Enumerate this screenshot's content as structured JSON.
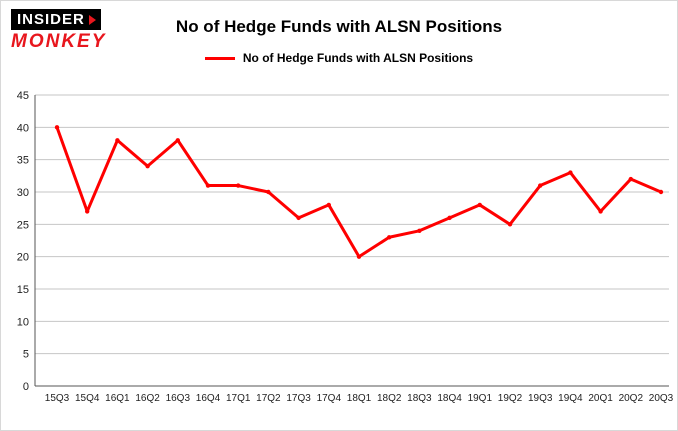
{
  "brand": {
    "line1": "INSIDER",
    "line2": "MONKEY"
  },
  "header": {
    "title": "No of Hedge Funds with ALSN Positions"
  },
  "legend": {
    "label": "No of Hedge Funds with ALSN Positions",
    "color": "#ff0000"
  },
  "chart_data": {
    "type": "line",
    "title": "No of Hedge Funds with ALSN Positions",
    "legend": "No of Hedge Funds with ALSN Positions",
    "categories": [
      "15Q3",
      "15Q4",
      "16Q1",
      "16Q2",
      "16Q3",
      "16Q4",
      "17Q1",
      "17Q2",
      "17Q3",
      "17Q4",
      "18Q1",
      "18Q2",
      "18Q3",
      "18Q4",
      "19Q1",
      "19Q2",
      "19Q3",
      "19Q4",
      "20Q1",
      "20Q2",
      "20Q3"
    ],
    "values": [
      40,
      27,
      38,
      34,
      38,
      31,
      31,
      30,
      26,
      28,
      20,
      23,
      24,
      26,
      28,
      25,
      31,
      33,
      27,
      32,
      30
    ],
    "ylim": [
      0,
      45
    ],
    "ytick_step": 5,
    "grid": true,
    "legend_position": "top",
    "line_color": "#ff0000",
    "grid_color": "#c6c6c6",
    "axis_color": "#555555",
    "tick_label_color": "#222222"
  }
}
